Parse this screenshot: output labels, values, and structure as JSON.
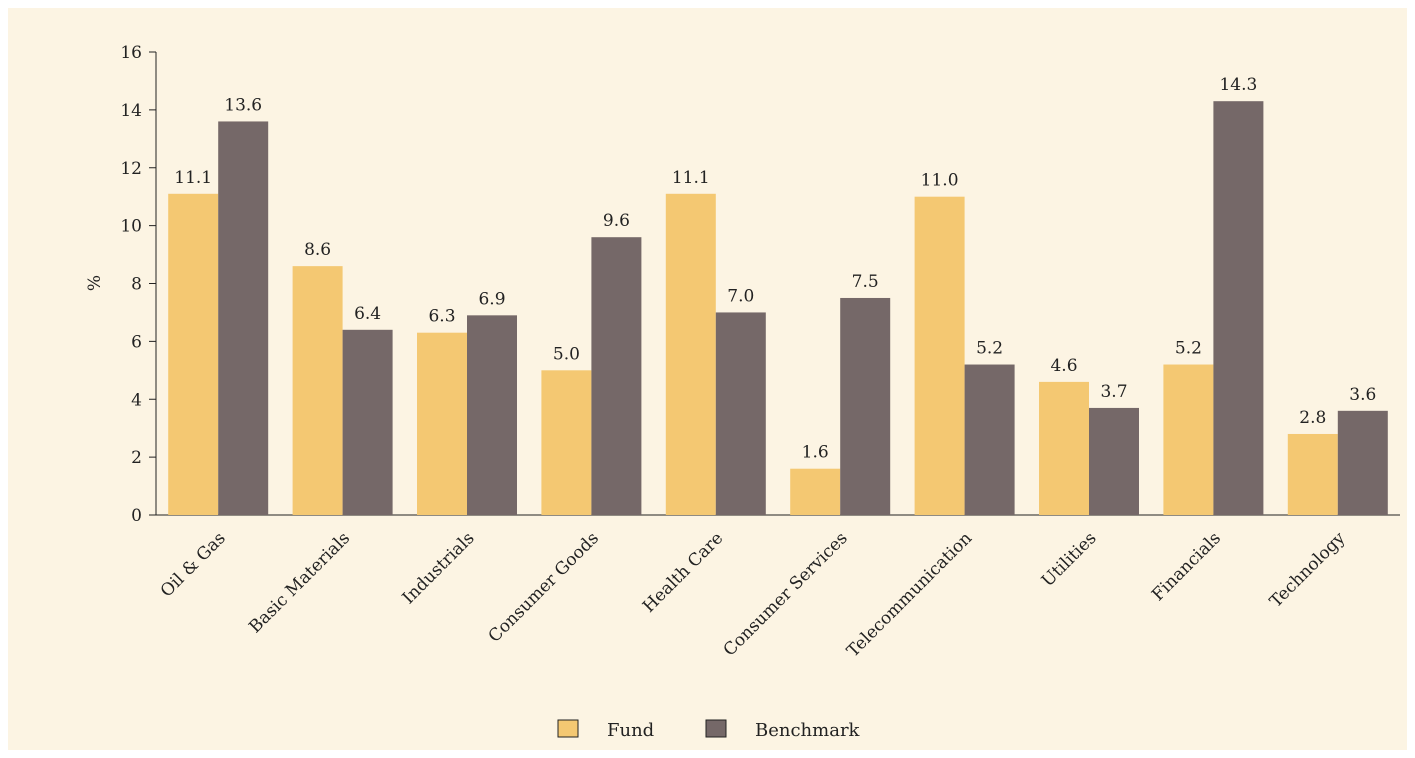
{
  "chart_data": {
    "type": "bar",
    "ylabel": "%",
    "ylim": [
      0,
      16
    ],
    "yticks": [
      0,
      2,
      4,
      6,
      8,
      10,
      12,
      14,
      16
    ],
    "categories": [
      "Oil & Gas",
      "Basic Materials",
      "Industrials",
      "Consumer Goods",
      "Health Care",
      "Consumer Services",
      "Telecommunication",
      "Utilities",
      "Financials",
      "Technology"
    ],
    "series": [
      {
        "name": "Fund",
        "color": "#f4c872",
        "values": [
          11.1,
          8.6,
          6.3,
          5.0,
          11.1,
          1.6,
          11.0,
          4.6,
          5.2,
          2.8
        ]
      },
      {
        "name": "Benchmark",
        "color": "#756868",
        "values": [
          13.6,
          6.4,
          6.9,
          9.6,
          7.0,
          7.5,
          5.2,
          3.7,
          14.3,
          3.6
        ]
      }
    ],
    "grid": false,
    "legend_position": "bottom-center",
    "background": "#fcf4e3"
  }
}
